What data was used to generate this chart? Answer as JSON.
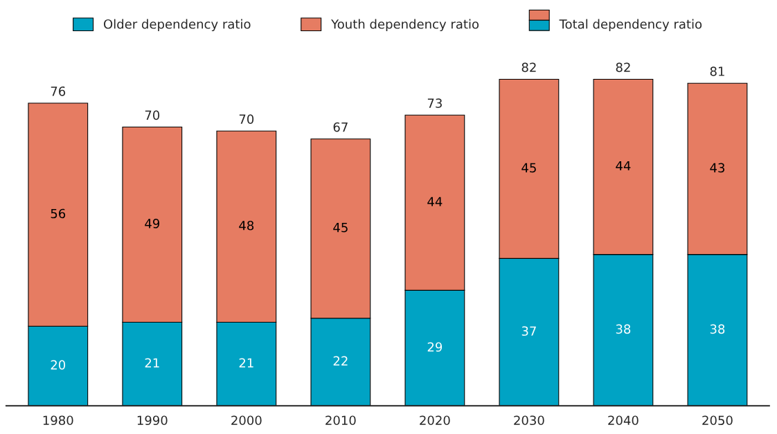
{
  "chart_data": {
    "type": "bar",
    "stacked": true,
    "data_labels": true,
    "legend": "top",
    "grid": false,
    "categories": [
      "1980",
      "1990",
      "2000",
      "2010",
      "2020",
      "2030",
      "2040",
      "2050"
    ],
    "series": [
      {
        "name": "Older dependency ratio",
        "color": "#00a3c4",
        "values": [
          20,
          21,
          21,
          22,
          29,
          37,
          38,
          38
        ]
      },
      {
        "name": "Youth dependency ratio",
        "color": "#e67c62",
        "values": [
          56,
          49,
          48,
          45,
          44,
          45,
          44,
          43
        ]
      }
    ],
    "totals": [
      "76",
      "70",
      "70",
      "67",
      "73",
      "82",
      "82",
      "81"
    ],
    "annotations": [
      "Total dependency ratio"
    ]
  }
}
